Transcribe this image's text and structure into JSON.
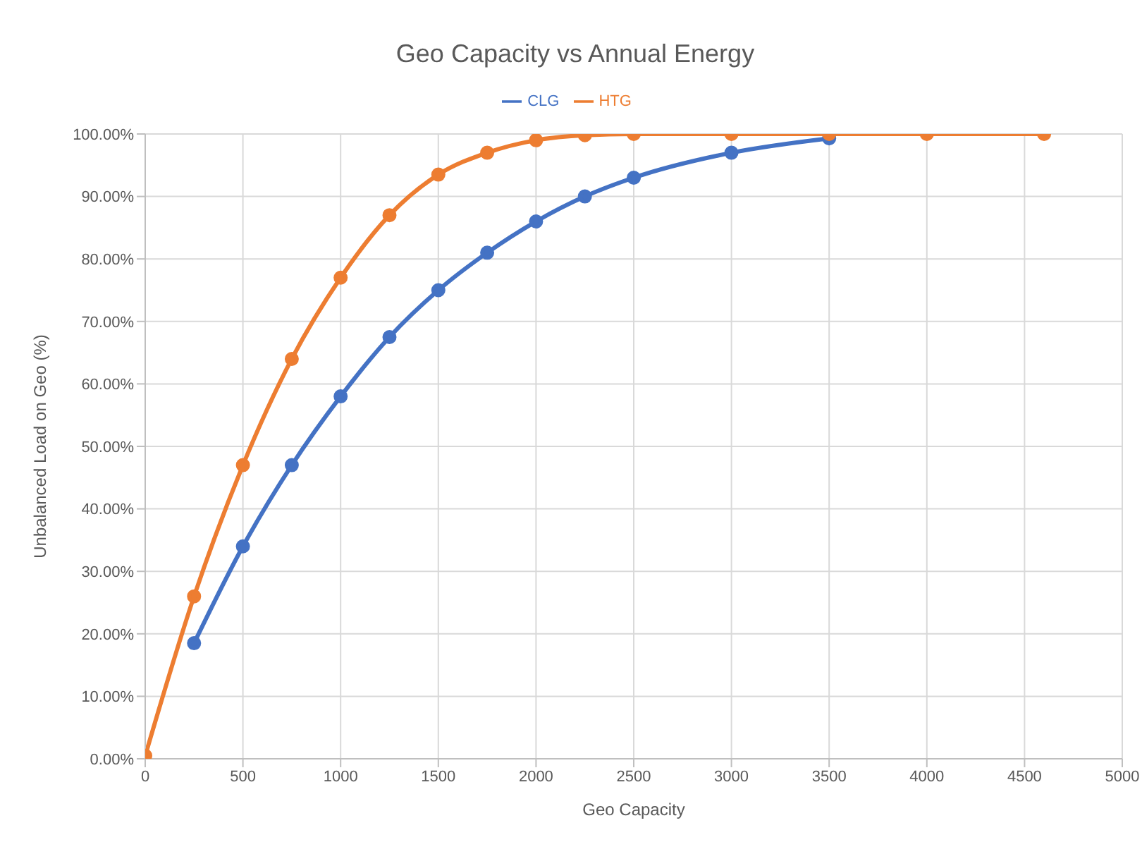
{
  "chart_data": {
    "type": "line",
    "title": "Geo Capacity vs Annual Energy",
    "xlabel": "Geo Capacity",
    "ylabel": "Unbalanced Load on Geo (%)",
    "x": [
      0,
      250,
      500,
      750,
      1000,
      1250,
      1500,
      1750,
      2000,
      2250,
      2500,
      3000,
      3500,
      4000,
      4600
    ],
    "series": [
      {
        "name": "CLG",
        "color": "#4472c4",
        "values": [
          null,
          18.5,
          34,
          47,
          58,
          67.5,
          75,
          81,
          86,
          90,
          93,
          97,
          99.3,
          null,
          null
        ]
      },
      {
        "name": "HTG",
        "color": "#ed7d31",
        "values": [
          0.5,
          26,
          47,
          64,
          77,
          87,
          93.5,
          97,
          99,
          99.8,
          100,
          100,
          100,
          100,
          100
        ]
      }
    ],
    "xlim": [
      0,
      5000
    ],
    "xticks": [
      0,
      500,
      1000,
      1500,
      2000,
      2500,
      3000,
      3500,
      4000,
      4500,
      5000
    ],
    "ylim": [
      0,
      100
    ],
    "yticks": [
      {
        "value": 0,
        "label": "0.00%"
      },
      {
        "value": 10,
        "label": "10.00%"
      },
      {
        "value": 20,
        "label": "20.00%"
      },
      {
        "value": 30,
        "label": "30.00%"
      },
      {
        "value": 40,
        "label": "40.00%"
      },
      {
        "value": 50,
        "label": "50.00%"
      },
      {
        "value": 60,
        "label": "60.00%"
      },
      {
        "value": 70,
        "label": "70.00%"
      },
      {
        "value": 80,
        "label": "80.00%"
      },
      {
        "value": 90,
        "label": "90.00%"
      },
      {
        "value": 100,
        "label": "100.00%"
      }
    ],
    "grid": true,
    "legend": "top",
    "marker": "circle",
    "line_style": "solid"
  }
}
